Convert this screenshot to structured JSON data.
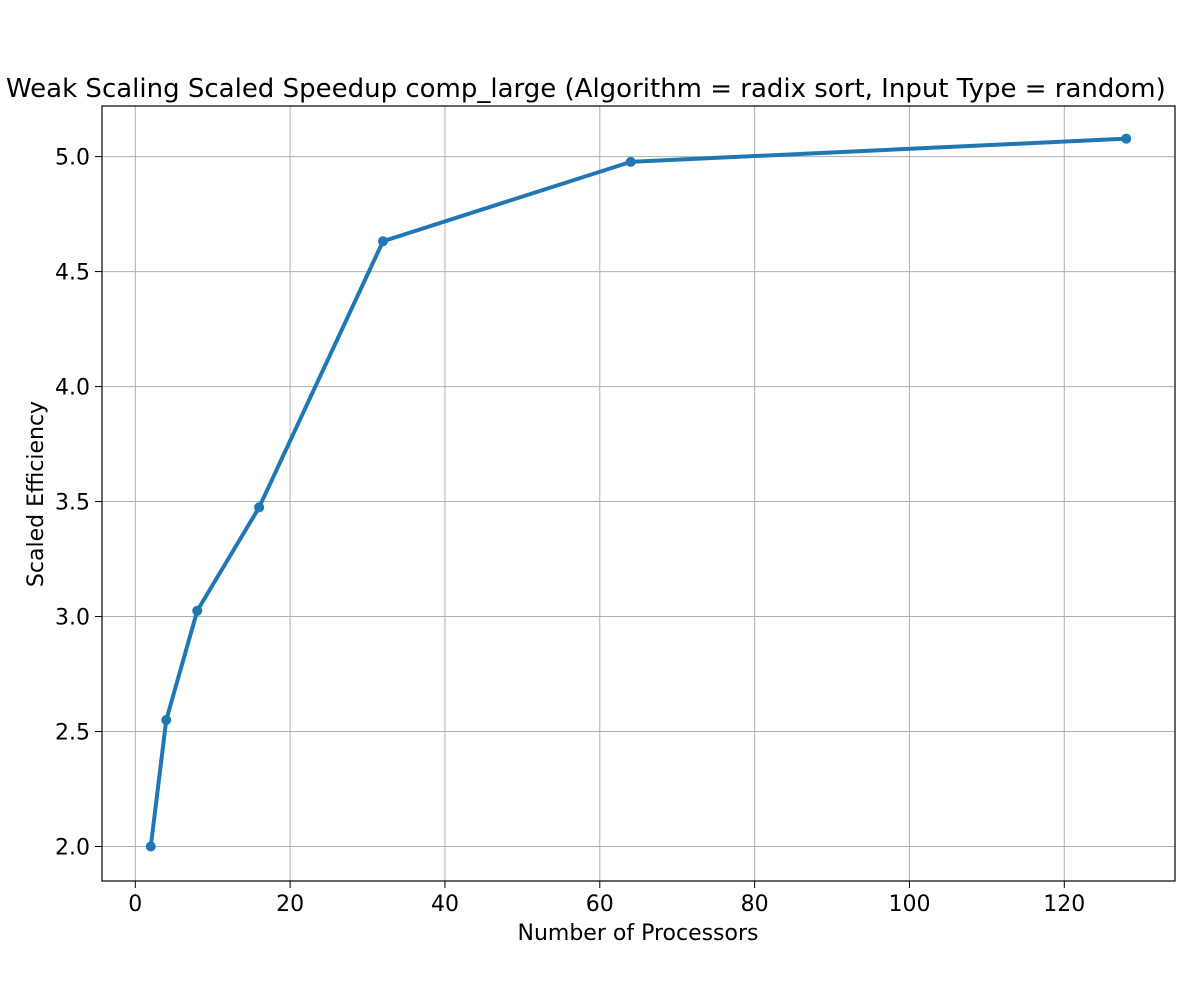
{
  "chart_data": {
    "type": "line",
    "title": "Weak Scaling Scaled Speedup comp_large (Algorithm = radix sort, Input Type = random)",
    "xlabel": "Number of Processors",
    "ylabel": "Scaled Efficiency",
    "xlim": [
      -4.3,
      134.3
    ],
    "ylim": [
      1.85,
      5.22
    ],
    "xticks": [
      0,
      20,
      40,
      60,
      80,
      100,
      120
    ],
    "yticks": [
      2.0,
      2.5,
      3.0,
      3.5,
      4.0,
      4.5,
      5.0
    ],
    "xtick_labels": [
      "0",
      "20",
      "40",
      "60",
      "80",
      "100",
      "120"
    ],
    "ytick_labels": [
      "2.0",
      "2.5",
      "3.0",
      "3.5",
      "4.0",
      "4.5",
      "5.0"
    ],
    "grid": true,
    "legend": "none",
    "series": [
      {
        "x": [
          2,
          4,
          8,
          16,
          32,
          64,
          128
        ],
        "values": [
          2.0,
          2.55,
          3.025,
          3.475,
          4.632,
          4.977,
          5.078
        ],
        "color": "#1f77b4",
        "marker": "circle"
      }
    ]
  }
}
